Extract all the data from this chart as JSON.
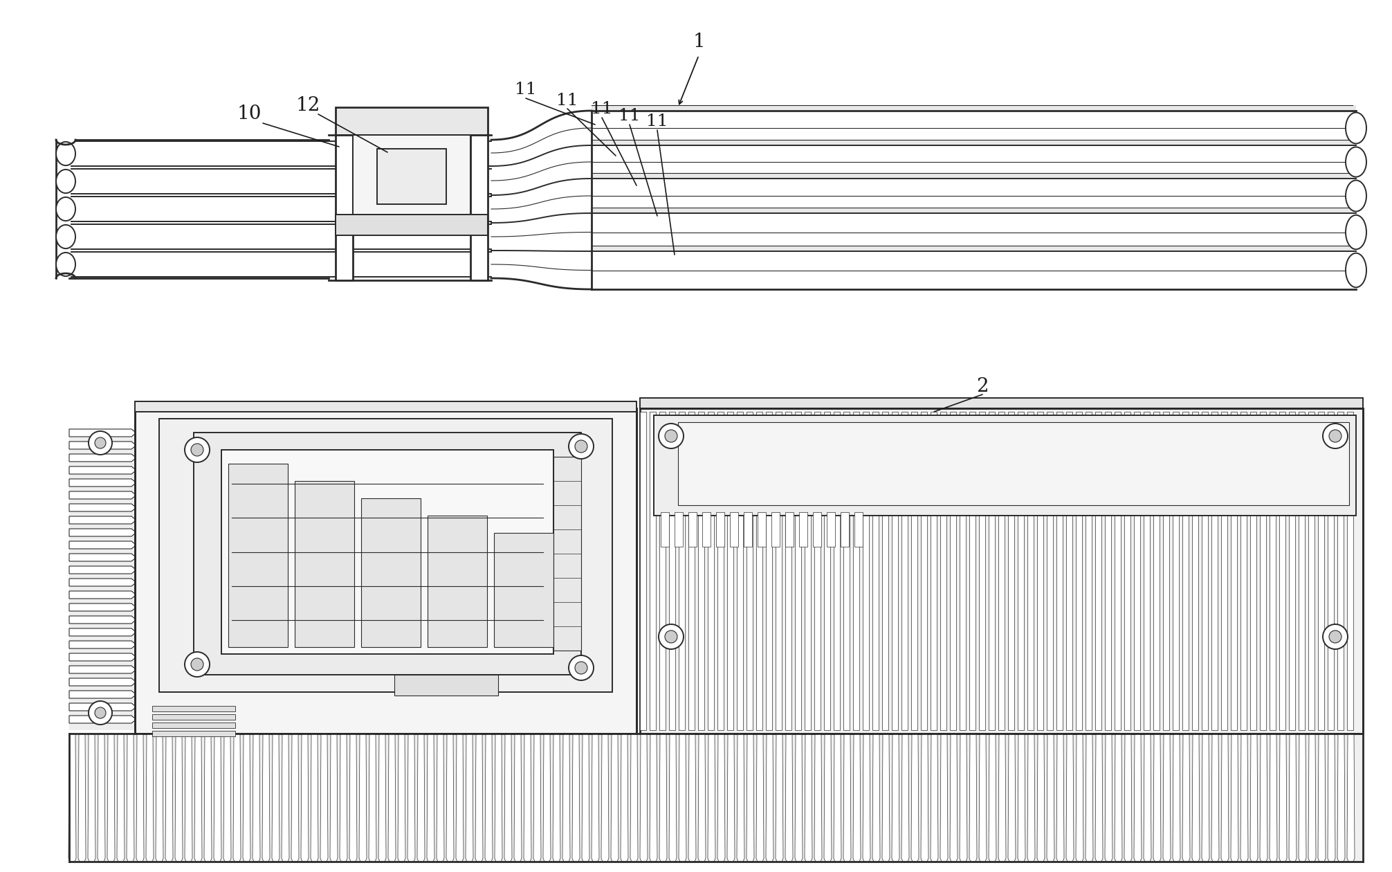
{
  "bg_color": "#ffffff",
  "line_color": "#2a2a2a",
  "fill_color": "#f0f0f0",
  "fill_dark": "#d8d8d8",
  "fill_white": "#ffffff",
  "lw_thick": 2.0,
  "lw_med": 1.4,
  "lw_thin": 0.8,
  "figsize": [
    20.12,
    12.6
  ],
  "dpi": 100,
  "label_fontsize": 20,
  "label_color": "#1a1a1a"
}
